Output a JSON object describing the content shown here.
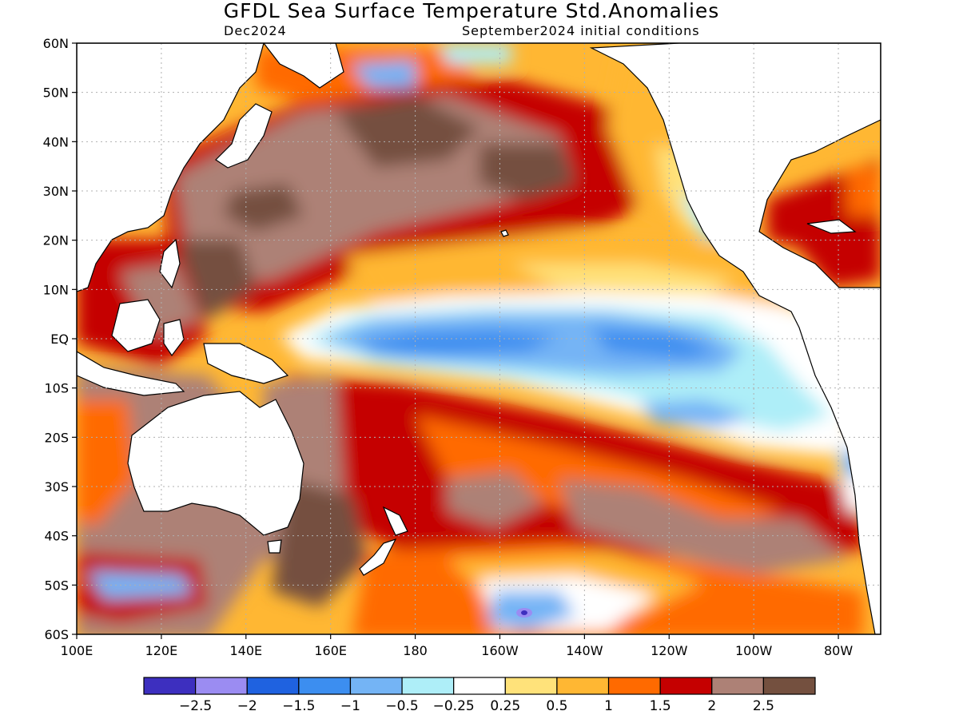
{
  "title": "GFDL Sea Surface Temperature Std.Anomalies",
  "valid_month": "Dec2024",
  "initial_conditions": "September2024 initial conditions",
  "lat_labels": [
    "60N",
    "50N",
    "40N",
    "30N",
    "20N",
    "10N",
    "EQ",
    "10S",
    "20S",
    "30S",
    "40S",
    "50S",
    "60S"
  ],
  "lon_labels": [
    "100E",
    "120E",
    "140E",
    "160E",
    "180",
    "160W",
    "140W",
    "120W",
    "100W",
    "80W"
  ],
  "colorbar": {
    "labels": [
      "-2.5",
      "-2",
      "-1.5",
      "-1",
      "-0.5",
      "-0.25",
      "0.25",
      "0.5",
      "1",
      "1.5",
      "2",
      "2.5"
    ],
    "colors": [
      "#3d2fbf",
      "#9b8cf2",
      "#1f62e0",
      "#3c8ef0",
      "#74b4f5",
      "#aeeef8",
      "#ffffff",
      "#ffe27a",
      "#ffb733",
      "#ff6a00",
      "#c50000",
      "#ad8176",
      "#74503f"
    ]
  },
  "colors": {
    "land": "#ffffff",
    "grid": "#b0b0b0",
    "frame": "#000000"
  }
}
